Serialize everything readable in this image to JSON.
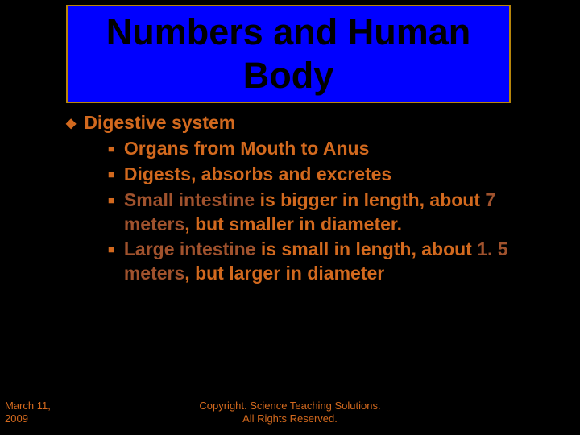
{
  "title": "Numbers and Human Body",
  "heading": "Digestive system",
  "items": [
    {
      "text": "Organs from Mouth to Anus"
    },
    {
      "text": "Digests, absorbs and excretes"
    },
    {
      "html": "<span class=\"darker\">Small intestine</span> is bigger in length, about <span class=\"darker\">7 meters</span>, but smaller in diameter."
    },
    {
      "html": "<span class=\"darker\">Large intestine</span> is small in length, about <span class=\"darker\">1. 5 meters</span>, but larger in diameter"
    }
  ],
  "footer": {
    "date_line1": "March 11,",
    "date_line2": "2009",
    "copy_line1": "Copyright. Science Teaching Solutions.",
    "copy_line2": "All Rights Reserved."
  },
  "colors": {
    "background": "#000000",
    "title_bg": "#0000ff",
    "title_border": "#b8860b",
    "title_text": "#000000",
    "body_text": "#d2691e",
    "emphasis_text": "#a0522d"
  }
}
